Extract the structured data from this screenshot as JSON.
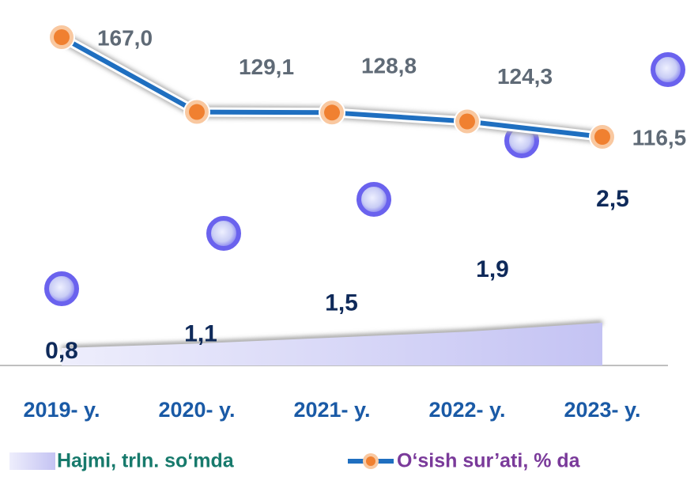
{
  "chart_data": {
    "type": "line",
    "categories": [
      "2019- y.",
      "2020- y.",
      "2021- y.",
      "2022- y.",
      "2023- y."
    ],
    "series": [
      {
        "name": "Hajmi, trln. so‘mda",
        "type": "area",
        "color": "#c9c8f5",
        "values": [
          0.8,
          1.1,
          1.5,
          1.9,
          2.5
        ],
        "value_labels": [
          "0,8",
          "1,1",
          "1,5",
          "1,9",
          "2,5"
        ]
      },
      {
        "name": "O‘sish sur’ati, % da",
        "type": "line",
        "color": "#1f6fc0",
        "marker_color": "#f08030",
        "values": [
          167.0,
          129.1,
          128.8,
          124.3,
          116.5
        ],
        "value_labels": [
          "167,0",
          "129,1",
          "128,8",
          "124,3",
          "116,5"
        ]
      }
    ]
  }
}
